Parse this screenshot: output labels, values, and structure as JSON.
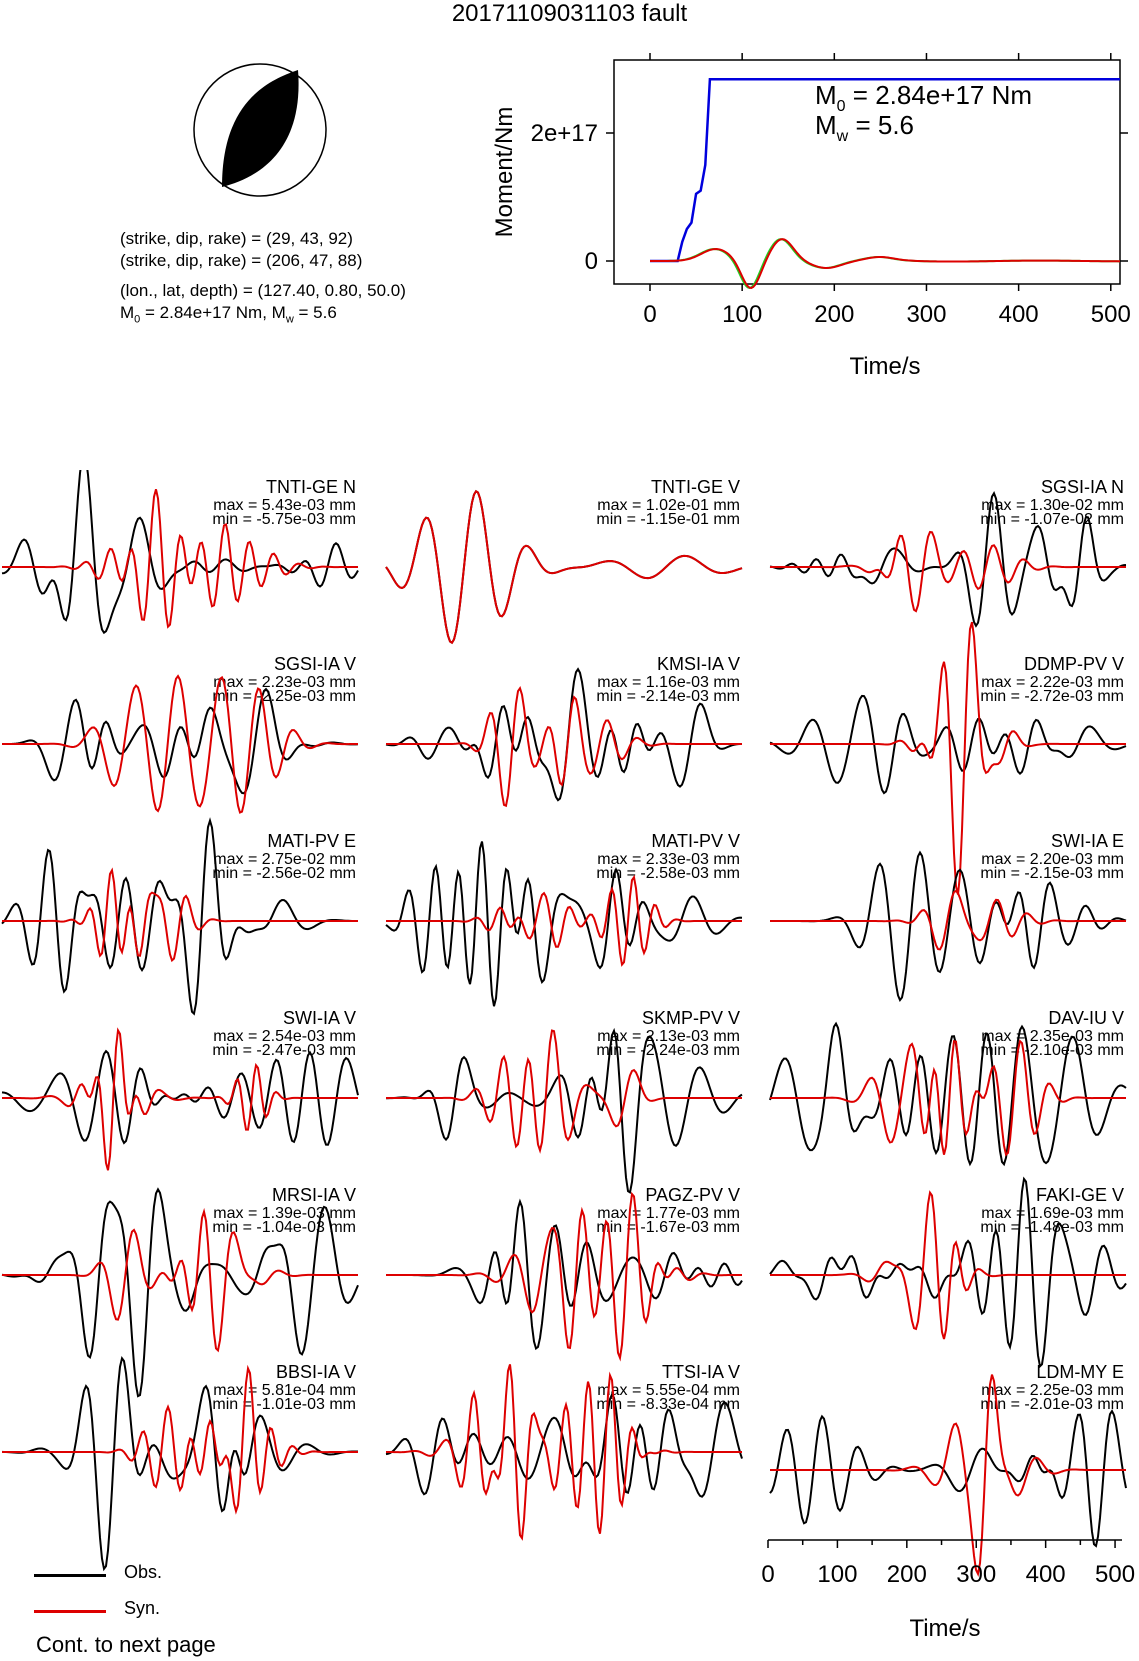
{
  "title": "20171109031103 fault",
  "focal_mechanism": {
    "plane1": "(strike, dip, rake) = (29, 43, 92)",
    "plane2": "(strike, dip, rake) = (206, 47, 88)",
    "location": "(lon., lat, depth) = (127.40, 0.80, 50.0)",
    "moment_prefix": "M",
    "moment_sub": "0",
    "moment_mid": " = 2.84e+17 Nm, M",
    "moment_sub2": "w",
    "moment_suffix": " = 5.6"
  },
  "legend": {
    "obs": "Obs.",
    "syn": "Syn."
  },
  "footer": "Cont. to next page",
  "colors": {
    "obs": "#000000",
    "syn": "#dd0000",
    "moment": "#0000dd",
    "stf_green": "#22cc22"
  },
  "chart_data": [
    {
      "type": "line",
      "title": "",
      "xlabel": "Time/s",
      "ylabel": "Moment/Nm",
      "xlim": [
        0,
        510
      ],
      "xticks": [
        "0",
        "100",
        "200",
        "300",
        "400",
        "500"
      ],
      "yticks": [
        "0",
        "2e+17"
      ],
      "annotation_m0": "M0 = 2.84e+17 Nm",
      "annotation_mw": "Mw = 5.6",
      "series": [
        {
          "color": "blue",
          "x": [
            0,
            30,
            35,
            40,
            45,
            50,
            55,
            60,
            65,
            510
          ],
          "y": [
            0,
            0,
            3e+16,
            5e+16,
            6e+16,
            1.05e+17,
            1.1e+17,
            1.5e+17,
            2.84e+17,
            2.84e+17
          ]
        }
      ]
    },
    {
      "type": "line",
      "description_waveforms": "station waveforms, Obs. vs Syn.",
      "xlim": [
        0,
        510
      ],
      "xticks": [
        "0",
        "100",
        "200",
        "300",
        "400",
        "500"
      ],
      "xlabel": "Time/s",
      "stations": [
        {
          "name": "TNTI-GE N",
          "max": "max = 5.43e-03 mm",
          "min": "min = -5.75e-03 mm"
        },
        {
          "name": "TNTI-GE V",
          "max": "max = 1.02e-01 mm",
          "min": "min = -1.15e-01 mm"
        },
        {
          "name": "SGSI-IA N",
          "max": "max = 1.30e-02 mm",
          "min": "min = -1.07e-02 mm"
        },
        {
          "name": "SGSI-IA V",
          "max": "max = 2.23e-03 mm",
          "min": "min = -2.25e-03 mm"
        },
        {
          "name": "KMSI-IA V",
          "max": "max = 1.16e-03 mm",
          "min": "min = -2.14e-03 mm"
        },
        {
          "name": "DDMP-PV V",
          "max": "max = 2.22e-03 mm",
          "min": "min = -2.72e-03 mm"
        },
        {
          "name": "MATI-PV E",
          "max": "max = 2.75e-02 mm",
          "min": "min = -2.56e-02 mm"
        },
        {
          "name": "MATI-PV V",
          "max": "max = 2.33e-03 mm",
          "min": "min = -2.58e-03 mm"
        },
        {
          "name": "SWI-IA E",
          "max": "max = 2.20e-03 mm",
          "min": "min = -2.15e-03 mm"
        },
        {
          "name": "SWI-IA V",
          "max": "max = 2.54e-03 mm",
          "min": "min = -2.47e-03 mm"
        },
        {
          "name": "SKMP-PV V",
          "max": "max = 2.13e-03 mm",
          "min": "min = -2.24e-03 mm"
        },
        {
          "name": "DAV-IU V",
          "max": "max = 2.35e-03 mm",
          "min": "min = -2.10e-03 mm"
        },
        {
          "name": "MRSI-IA V",
          "max": "max = 1.39e-03 mm",
          "min": "min = -1.04e-03 mm"
        },
        {
          "name": "PAGZ-PV V",
          "max": "max = 1.77e-03 mm",
          "min": "min = -1.67e-03 mm"
        },
        {
          "name": "FAKI-GE V",
          "max": "max = 1.69e-03 mm",
          "min": "min = -1.48e-03 mm"
        },
        {
          "name": "BBSI-IA V",
          "max": "max = 5.81e-04 mm",
          "min": "min = -1.01e-03 mm"
        },
        {
          "name": "TTSI-IA V",
          "max": "max = 5.55e-04 mm",
          "min": "min = -8.33e-04 mm"
        },
        {
          "name": "LDM-MY E",
          "max": "max = 2.25e-03 mm",
          "min": "min = -2.01e-03 mm"
        }
      ]
    }
  ]
}
